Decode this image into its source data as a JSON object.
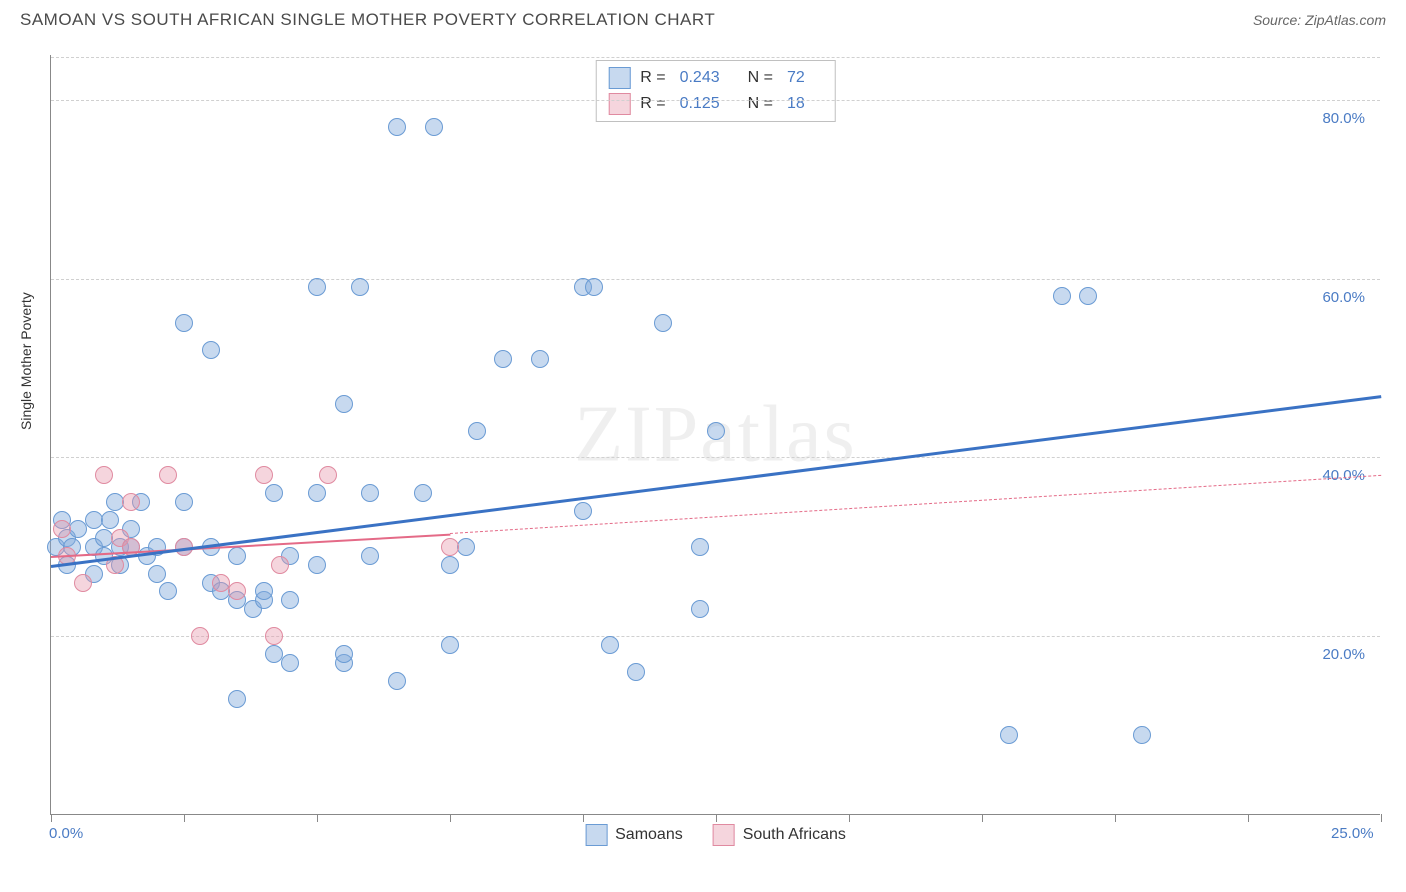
{
  "title": "SAMOAN VS SOUTH AFRICAN SINGLE MOTHER POVERTY CORRELATION CHART",
  "source_prefix": "Source: ",
  "source": "ZipAtlas.com",
  "watermark": "ZIPatlas",
  "y_axis_label": "Single Mother Poverty",
  "chart": {
    "type": "scatter",
    "xlim": [
      0,
      25
    ],
    "ylim": [
      0,
      85
    ],
    "x_tick_positions": [
      0,
      2.5,
      5,
      7.5,
      10,
      12.5,
      15,
      17.5,
      20,
      22.5,
      25
    ],
    "x_tick_labels": {
      "0": "0.0%",
      "25": "25.0%"
    },
    "y_gridlines": [
      20,
      40,
      60,
      80
    ],
    "y_tick_labels": {
      "20": "20.0%",
      "40": "40.0%",
      "60": "60.0%",
      "80": "80.0%"
    },
    "background_color": "#ffffff",
    "grid_color": "#d0d0d0",
    "axis_color": "#888888",
    "point_radius": 9,
    "series": [
      {
        "name": "Samoans",
        "color_fill": "rgba(130, 170, 220, 0.45)",
        "color_stroke": "#6a9bd4",
        "trend_color": "#3a72c4",
        "trend_width": 3,
        "R": "0.243",
        "N": "72",
        "trend": {
          "x1": 0,
          "y1": 28,
          "x2": 25,
          "y2": 47,
          "dash": false
        },
        "points": [
          [
            0.1,
            30
          ],
          [
            0.2,
            33
          ],
          [
            0.3,
            31
          ],
          [
            0.3,
            28
          ],
          [
            0.4,
            30
          ],
          [
            0.5,
            32
          ],
          [
            0.8,
            30
          ],
          [
            0.8,
            33
          ],
          [
            0.8,
            27
          ],
          [
            1.0,
            31
          ],
          [
            1.0,
            29
          ],
          [
            1.1,
            33
          ],
          [
            1.2,
            35
          ],
          [
            1.3,
            30
          ],
          [
            1.3,
            28
          ],
          [
            1.5,
            30
          ],
          [
            1.5,
            32
          ],
          [
            1.7,
            35
          ],
          [
            1.8,
            29
          ],
          [
            2.0,
            30
          ],
          [
            2.0,
            27
          ],
          [
            2.2,
            25
          ],
          [
            2.5,
            35
          ],
          [
            2.5,
            30
          ],
          [
            2.5,
            55
          ],
          [
            3.0,
            30
          ],
          [
            3.0,
            52
          ],
          [
            3.0,
            26
          ],
          [
            3.2,
            25
          ],
          [
            3.5,
            29
          ],
          [
            3.5,
            24
          ],
          [
            3.5,
            13
          ],
          [
            3.8,
            23
          ],
          [
            4.0,
            24
          ],
          [
            4.0,
            25
          ],
          [
            4.2,
            18
          ],
          [
            4.2,
            36
          ],
          [
            4.5,
            29
          ],
          [
            4.5,
            17
          ],
          [
            4.5,
            24
          ],
          [
            5.0,
            36
          ],
          [
            5.0,
            59
          ],
          [
            5.0,
            28
          ],
          [
            5.5,
            17
          ],
          [
            5.5,
            18
          ],
          [
            5.5,
            46
          ],
          [
            5.8,
            59
          ],
          [
            6.0,
            29
          ],
          [
            6.0,
            36
          ],
          [
            6.5,
            15
          ],
          [
            6.5,
            77
          ],
          [
            7.0,
            36
          ],
          [
            7.2,
            77
          ],
          [
            7.5,
            28
          ],
          [
            7.5,
            19
          ],
          [
            7.8,
            30
          ],
          [
            8.0,
            43
          ],
          [
            8.5,
            51
          ],
          [
            9.2,
            51
          ],
          [
            10.0,
            34
          ],
          [
            10.0,
            59
          ],
          [
            10.2,
            59
          ],
          [
            10.5,
            19
          ],
          [
            11.0,
            16
          ],
          [
            11.5,
            55
          ],
          [
            12.2,
            23
          ],
          [
            12.2,
            30
          ],
          [
            12.5,
            43
          ],
          [
            18.0,
            9
          ],
          [
            19.0,
            58
          ],
          [
            19.5,
            58
          ],
          [
            20.5,
            9
          ]
        ]
      },
      {
        "name": "South Africans",
        "color_fill": "rgba(230, 150, 170, 0.40)",
        "color_stroke": "#e08aa0",
        "trend_color": "#e46a87",
        "trend_width": 2,
        "R": "0.125",
        "N": "18",
        "trend_solid": {
          "x1": 0,
          "y1": 29,
          "x2": 7.5,
          "y2": 31.5,
          "dash": false
        },
        "trend_dash": {
          "x1": 7.5,
          "y1": 31.5,
          "x2": 25,
          "y2": 38,
          "dash": true
        },
        "points": [
          [
            0.2,
            32
          ],
          [
            0.3,
            29
          ],
          [
            0.6,
            26
          ],
          [
            1.0,
            38
          ],
          [
            1.2,
            28
          ],
          [
            1.3,
            31
          ],
          [
            1.5,
            35
          ],
          [
            1.5,
            30
          ],
          [
            2.2,
            38
          ],
          [
            2.5,
            30
          ],
          [
            2.8,
            20
          ],
          [
            3.2,
            26
          ],
          [
            3.5,
            25
          ],
          [
            4.0,
            38
          ],
          [
            4.2,
            20
          ],
          [
            4.3,
            28
          ],
          [
            5.2,
            38
          ],
          [
            7.5,
            30
          ]
        ]
      }
    ],
    "legend_labels": {
      "samoans": "Samoans",
      "south_africans": "South Africans"
    },
    "stats_labels": {
      "R": "R =",
      "N": "N ="
    }
  }
}
